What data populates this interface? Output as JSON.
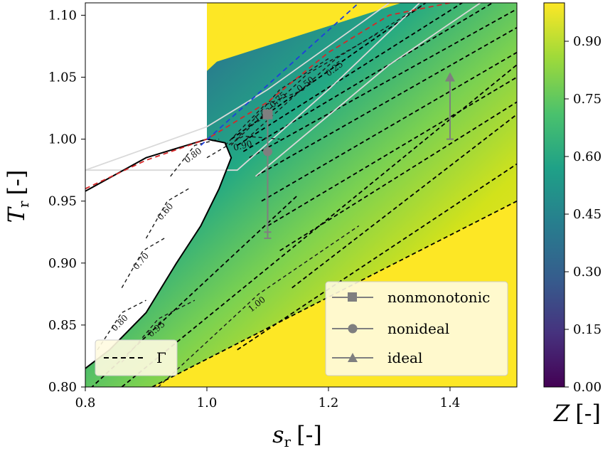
{
  "chart_data": {
    "type": "contour",
    "x": {
      "label_main": "s",
      "label_sub": "r",
      "label_unit": "[-]",
      "ticks": [
        "0.8",
        "1.0",
        "1.2",
        "1.4"
      ],
      "tick_values": [
        0.8,
        1.0,
        1.2,
        1.4
      ],
      "range": [
        0.8,
        1.51
      ]
    },
    "y": {
      "label_main": "T",
      "label_sub": "r",
      "label_unit": "[-]",
      "ticks": [
        "0.80",
        "0.85",
        "0.90",
        "0.95",
        "1.00",
        "1.05",
        "1.10"
      ],
      "tick_values": [
        0.8,
        0.85,
        0.9,
        0.95,
        1.0,
        1.05,
        1.1
      ],
      "range": [
        0.8,
        1.11
      ]
    },
    "colorbar": {
      "label_main": "Z",
      "label_unit": "[-]",
      "ticks": [
        "0.00",
        "0.15",
        "0.30",
        "0.45",
        "0.60",
        "0.75",
        "0.90"
      ],
      "tick_values": [
        0.0,
        0.15,
        0.3,
        0.45,
        0.6,
        0.75,
        0.9
      ],
      "range": [
        0.0,
        1.0
      ],
      "colors": [
        "#440154",
        "#46327e",
        "#365c8d",
        "#277f8e",
        "#1fa187",
        "#4ac16d",
        "#a0da39",
        "#fde725"
      ]
    },
    "contour_levels": [
      {
        "value": 0.25,
        "label": "0.25",
        "x0": 1.065,
        "x1": 1.36,
        "y0": 1.0,
        "y1": 1.11
      },
      {
        "value": 0.5,
        "label": "0.50",
        "x0": 1.05,
        "x1": 1.28,
        "y0": 1.0,
        "y1": 1.085
      },
      {
        "value": 0.75,
        "label": "0.75",
        "x0": 1.04,
        "x1": 1.2,
        "y0": 0.995,
        "y1": 1.065
      },
      {
        "value": 1.0,
        "label": "1.00",
        "x0": 1.03,
        "x1": 1.16,
        "y0": 0.995,
        "y1": 1.04
      },
      {
        "value": 0.9,
        "label": "0.90",
        "x0": 1.0,
        "x1": 1.12,
        "y0": 0.985,
        "y1": 1.0
      },
      {
        "value": 0.8,
        "label": "0.80",
        "x0": 0.94,
        "x1": 1.02,
        "y0": 0.97,
        "y1": 1.0
      },
      {
        "value": 0.6,
        "label": "0.60",
        "x0": 0.9,
        "x1": 0.97,
        "y0": 0.92,
        "y1": 0.96
      },
      {
        "value": 0.7,
        "label": "0.70",
        "x0": 0.86,
        "x1": 0.93,
        "y0": 0.88,
        "y1": 0.92
      },
      {
        "value": 0.8,
        "label": "0.80",
        "x0": 0.82,
        "x1": 0.9,
        "y0": 0.83,
        "y1": 0.87
      },
      {
        "value": 0.95,
        "label": "0.95",
        "x0": 0.86,
        "x1": 0.98,
        "y0": 0.82,
        "y1": 0.87
      },
      {
        "value": 1.0,
        "label": "1.00",
        "x0": 0.92,
        "x1": 1.25,
        "y0": 0.8,
        "y1": 0.93
      }
    ],
    "label_texts": [
      "0.25",
      "0.50",
      "0.75",
      "1.00",
      "0.90",
      "0.80",
      "0.60",
      "0.70",
      "0.80",
      "0.95",
      "1.00"
    ],
    "gamma_lines": [
      [
        [
          1.04,
          1.0
        ],
        [
          1.36,
          1.11
        ]
      ],
      [
        [
          1.05,
          0.995
        ],
        [
          1.42,
          1.11
        ]
      ],
      [
        [
          1.06,
          0.99
        ],
        [
          1.47,
          1.11
        ]
      ],
      [
        [
          1.07,
          0.985
        ],
        [
          1.51,
          1.105
        ]
      ],
      [
        [
          1.08,
          0.97
        ],
        [
          1.51,
          1.09
        ]
      ],
      [
        [
          1.09,
          0.95
        ],
        [
          1.51,
          1.07
        ]
      ],
      [
        [
          1.1,
          0.93
        ],
        [
          1.51,
          1.05
        ]
      ],
      [
        [
          1.12,
          0.91
        ],
        [
          1.51,
          1.03
        ]
      ],
      [
        [
          1.14,
          0.88
        ],
        [
          1.51,
          1.02
        ]
      ],
      [
        [
          1.05,
          0.83
        ],
        [
          1.51,
          0.98
        ]
      ],
      [
        [
          0.86,
          0.8
        ],
        [
          1.51,
          1.06
        ]
      ],
      [
        [
          0.91,
          0.8
        ],
        [
          1.51,
          0.95
        ]
      ],
      [
        [
          0.8,
          0.795
        ],
        [
          1.15,
          0.955
        ]
      ]
    ],
    "dashed_blue": [
      [
        0.99,
        0.995
      ],
      [
        1.25,
        1.11
      ]
    ],
    "dashed_red": [
      [
        0.8,
        0.96
      ],
      [
        0.9,
        0.983
      ],
      [
        1.0,
        1.0
      ],
      [
        1.1,
        1.03
      ],
      [
        1.2,
        1.07
      ],
      [
        1.3,
        1.1
      ],
      [
        1.4,
        1.11
      ]
    ],
    "saturation_curve": [
      [
        0.8,
        0.958
      ],
      [
        0.9,
        0.985
      ],
      [
        1.0,
        1.0
      ],
      [
        1.03,
        0.997
      ],
      [
        1.04,
        0.985
      ],
      [
        1.02,
        0.96
      ],
      [
        0.99,
        0.93
      ],
      [
        0.95,
        0.9
      ],
      [
        0.9,
        0.86
      ],
      [
        0.84,
        0.83
      ],
      [
        0.8,
        0.815
      ]
    ],
    "isobars_gray": [
      [
        [
          0.8,
          0.975
        ],
        [
          1.0,
          1.01
        ],
        [
          1.1,
          1.04
        ],
        [
          1.3,
          1.11
        ]
      ],
      [
        [
          0.8,
          0.975
        ],
        [
          1.05,
          0.975
        ],
        [
          1.2,
          1.04
        ],
        [
          1.35,
          1.11
        ]
      ],
      [
        [
          1.08,
          0.97
        ],
        [
          1.3,
          1.06
        ],
        [
          1.45,
          1.11
        ]
      ]
    ],
    "markers": [
      {
        "series": "nonmonotonic",
        "x": 1.1,
        "y_top": 1.02,
        "y_bottom": 0.925
      },
      {
        "series": "nonideal",
        "x": 1.1,
        "y_top": 0.99,
        "y_bottom": 0.92
      },
      {
        "series": "ideal",
        "x": 1.4,
        "y_top": 1.05,
        "y_bottom": 1.0
      }
    ],
    "legend_main": {
      "entries": [
        "nonmonotonic",
        "nonideal",
        "ideal"
      ],
      "placement": "bottom-right"
    },
    "legend_gamma": {
      "entries": [
        "Γ"
      ],
      "placement": "bottom-left"
    }
  }
}
